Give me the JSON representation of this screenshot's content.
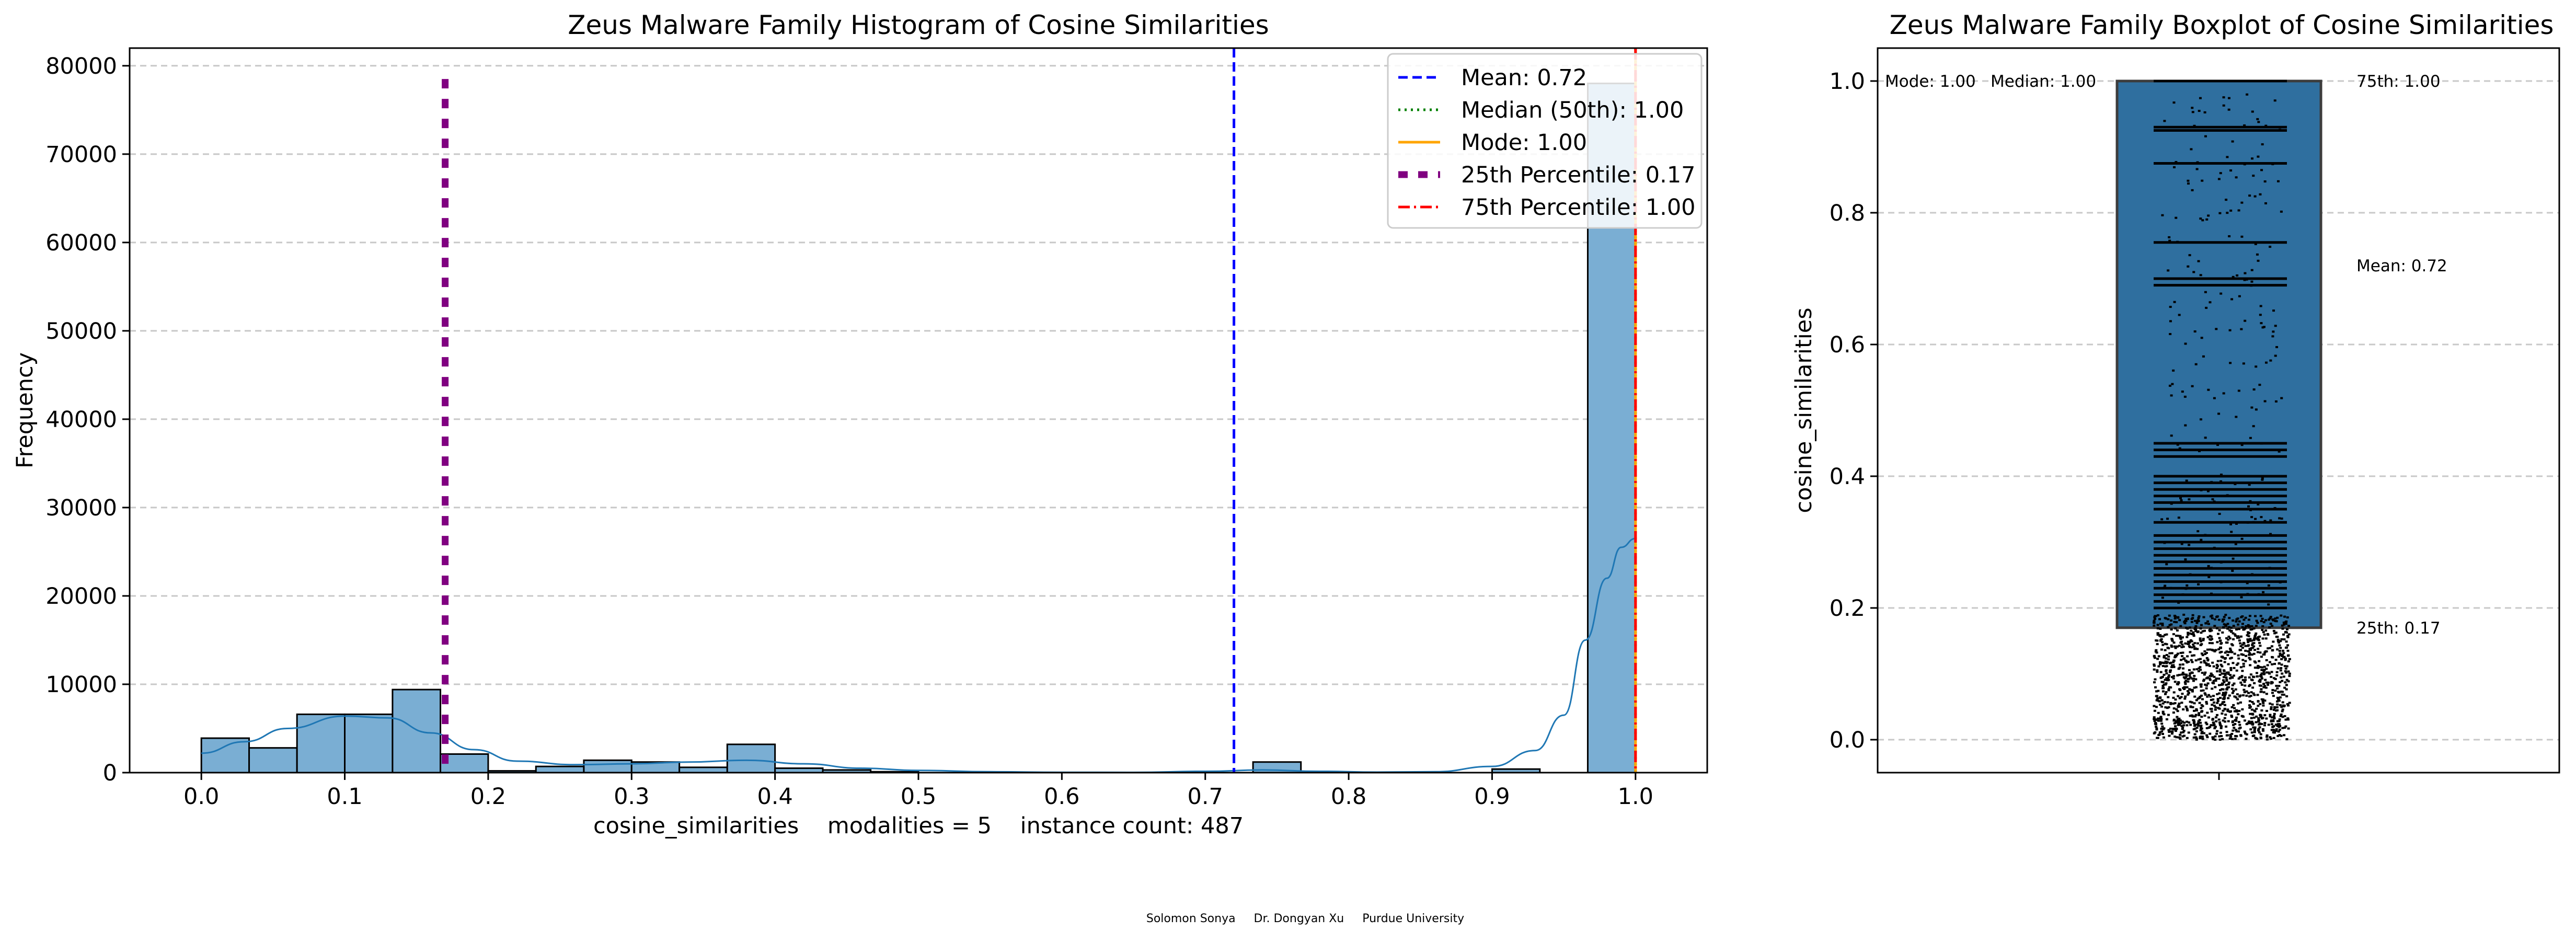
{
  "chart_data": [
    {
      "type": "histogram",
      "title": "Zeus Malware Family Histogram of Cosine Similarities",
      "xlabel": "cosine_similarities    modalities = 5    instance count: 487",
      "ylabel": "Frequency",
      "xlim": [
        -0.05,
        1.05
      ],
      "ylim": [
        0,
        82000
      ],
      "xticks": [
        0.0,
        0.1,
        0.2,
        0.3,
        0.4,
        0.5,
        0.6,
        0.7,
        0.8,
        0.9,
        1.0
      ],
      "xtick_labels": [
        "0.0",
        "0.1",
        "0.2",
        "0.3",
        "0.4",
        "0.5",
        "0.6",
        "0.7",
        "0.8",
        "0.9",
        "1.0"
      ],
      "yticks": [
        0,
        10000,
        20000,
        30000,
        40000,
        50000,
        60000,
        70000,
        80000
      ],
      "ytick_labels": [
        "0",
        "10000",
        "20000",
        "30000",
        "40000",
        "50000",
        "60000",
        "70000",
        "80000"
      ],
      "grid": "y-dashed",
      "bin_width": 0.0333,
      "bins": [
        {
          "x0": 0.0,
          "x1": 0.0333,
          "value": 3900
        },
        {
          "x0": 0.0333,
          "x1": 0.0667,
          "value": 2800
        },
        {
          "x0": 0.0667,
          "x1": 0.1,
          "value": 6600
        },
        {
          "x0": 0.1,
          "x1": 0.1333,
          "value": 6600
        },
        {
          "x0": 0.1333,
          "x1": 0.1667,
          "value": 9400
        },
        {
          "x0": 0.1667,
          "x1": 0.2,
          "value": 2100
        },
        {
          "x0": 0.2,
          "x1": 0.2333,
          "value": 200
        },
        {
          "x0": 0.2333,
          "x1": 0.2667,
          "value": 700
        },
        {
          "x0": 0.2667,
          "x1": 0.3,
          "value": 1400
        },
        {
          "x0": 0.3,
          "x1": 0.3333,
          "value": 1200
        },
        {
          "x0": 0.3333,
          "x1": 0.3667,
          "value": 600
        },
        {
          "x0": 0.3667,
          "x1": 0.4,
          "value": 3200
        },
        {
          "x0": 0.4,
          "x1": 0.4333,
          "value": 500
        },
        {
          "x0": 0.4333,
          "x1": 0.4667,
          "value": 300
        },
        {
          "x0": 0.4667,
          "x1": 0.5,
          "value": 100
        },
        {
          "x0": 0.7333,
          "x1": 0.7667,
          "value": 1200
        },
        {
          "x0": 0.9,
          "x1": 0.9333,
          "value": 400
        },
        {
          "x0": 0.9667,
          "x1": 1.0,
          "value": 78000
        }
      ],
      "kde": [
        [
          0.0,
          2200
        ],
        [
          0.03,
          3500
        ],
        [
          0.06,
          5000
        ],
        [
          0.1,
          6400
        ],
        [
          0.13,
          6200
        ],
        [
          0.16,
          4500
        ],
        [
          0.19,
          2600
        ],
        [
          0.22,
          1300
        ],
        [
          0.26,
          900
        ],
        [
          0.3,
          1000
        ],
        [
          0.34,
          1200
        ],
        [
          0.38,
          1400
        ],
        [
          0.42,
          1000
        ],
        [
          0.46,
          500
        ],
        [
          0.5,
          250
        ],
        [
          0.55,
          100
        ],
        [
          0.6,
          40
        ],
        [
          0.65,
          30
        ],
        [
          0.7,
          150
        ],
        [
          0.74,
          300
        ],
        [
          0.78,
          150
        ],
        [
          0.82,
          60
        ],
        [
          0.86,
          100
        ],
        [
          0.9,
          700
        ],
        [
          0.93,
          2500
        ],
        [
          0.95,
          6500
        ],
        [
          0.965,
          15000
        ],
        [
          0.98,
          22000
        ],
        [
          0.99,
          25500
        ],
        [
          1.0,
          26500
        ]
      ],
      "vlines": [
        {
          "label": "Mean: 0.72",
          "x": 0.72,
          "color": "#0000ff",
          "style": "dashed",
          "height_frac": 1.0
        },
        {
          "label": "Median (50th): 1.00",
          "x": 1.0,
          "color": "#008000",
          "style": "dotted",
          "height_frac": 1.0
        },
        {
          "label": "Mode: 1.00",
          "x": 1.0,
          "color": "#ffa500",
          "style": "solid",
          "height_frac": 1.0
        },
        {
          "label": "25th Percentile: 0.17",
          "x": 0.17,
          "color": "#800080",
          "style": "dashed-thick",
          "height_frac": 0.95
        },
        {
          "label": "75th Percentile: 1.00",
          "x": 1.0,
          "color": "#ff0000",
          "style": "dashdot",
          "height_frac": 1.0
        }
      ],
      "legend": "top-right"
    },
    {
      "type": "boxplot",
      "title": "Zeus Malware Family Boxplot of Cosine Similarities",
      "ylabel": "cosine_similarities",
      "ylim": [
        -0.05,
        1.05
      ],
      "yticks": [
        0.0,
        0.2,
        0.4,
        0.6,
        0.8,
        1.0
      ],
      "ytick_labels": [
        "0.0",
        "0.2",
        "0.4",
        "0.6",
        "0.8",
        "1.0"
      ],
      "grid": "y-dashed",
      "box": {
        "q1": 0.17,
        "median": 1.0,
        "q3": 1.0,
        "whisker_low": 0.0,
        "whisker_high": 1.0,
        "color": "#2f6f9f"
      },
      "strip_levels": [
        1.0,
        0.93,
        0.925,
        0.875,
        0.755,
        0.7,
        0.69,
        0.45,
        0.44,
        0.43,
        0.4,
        0.39,
        0.38,
        0.37,
        0.36,
        0.35,
        0.33,
        0.31,
        0.3,
        0.29,
        0.28,
        0.27,
        0.26,
        0.25,
        0.24,
        0.23,
        0.22,
        0.21,
        0.2
      ],
      "annotations": [
        {
          "text": "Mode: 1.00",
          "color": "#000000",
          "y": 1.0
        },
        {
          "text": "Median: 1.00",
          "color": "#008000",
          "y": 1.0
        },
        {
          "text": "75th: 1.00",
          "color": "#ff0000",
          "y": 1.0
        },
        {
          "text": "Mean: 0.72",
          "color": "#0000ff",
          "y": 0.72
        },
        {
          "text": "25th: 0.17",
          "color": "#800080",
          "y": 0.17
        }
      ]
    }
  ],
  "footer": "Solomon Sonya     Dr. Dongyan Xu     Purdue University"
}
